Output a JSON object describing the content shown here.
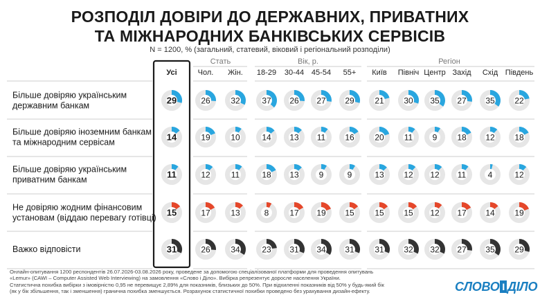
{
  "title_line1": "РОЗПОДІЛ ДОВІРИ ДО ДЕРЖАВНИХ, ПРИВАТНИХ",
  "title_line2": "ТА МІЖНАРОДНИХ БАНКІВСЬКИХ СЕРВІСІВ",
  "subtitle": "N = 1200, % (загальний, статевий, віковий і регіональний розподіли)",
  "footer": [
    "Онлайн-опитування 1200 респондентів 26.07.2026-03.08.2026 року, проведене за допомогою спеціалізованої платформи для проведення опитувань",
    "«Lemur» (CAWI – Computer Assisted Web Interviewing) на замовлення «Слово і Діло». Вибірка репрезентує доросле населення України.",
    "Статистична похибка вибірки з імовірністю 0,95 не перевищує 2,89% для показників, близьких до 50%. При відхиленні показників від 50% у будь-який бік",
    "(як у бік збільшення, так і зменшення) гранична похибка зменшується. Розрахунок статистичної похибки проведено без урахування дизайн-ефекту."
  ],
  "logo": {
    "left": "СЛОВО",
    "mid": "І",
    "right": "ДІЛО"
  },
  "colors": {
    "blue": "#29a6df",
    "red": "#e5472a",
    "dark": "#333333",
    "track": "#e6e6e6",
    "separator": "#bbbbbb",
    "highlight_border": "#1a1a1a"
  },
  "chart_data": {
    "type": "table",
    "unit": "%",
    "group_headers": [
      {
        "label": "Стать",
        "columns": [
          1,
          2
        ]
      },
      {
        "label": "Вік, р.",
        "columns": [
          3,
          4,
          5,
          6
        ]
      },
      {
        "label": "Регіон",
        "columns": [
          7,
          8,
          9,
          10,
          11,
          12
        ]
      }
    ],
    "columns": [
      "Усі",
      "Чол.",
      "Жін.",
      "18-29",
      "30-44",
      "45-54",
      "55+",
      "Київ",
      "Північ",
      "Центр",
      "Захід",
      "Схід",
      "Південь"
    ],
    "highlight_column": 0,
    "rows": [
      {
        "label_lines": [
          "Більше довіряю українським",
          "державним банкам"
        ],
        "color": "blue",
        "values": [
          29,
          26,
          32,
          37,
          26,
          27,
          29,
          21,
          30,
          35,
          27,
          35,
          22
        ]
      },
      {
        "label_lines": [
          "Більше довіряю іноземним банкам",
          "та міжнародним сервісам"
        ],
        "color": "blue",
        "values": [
          14,
          19,
          10,
          14,
          13,
          11,
          16,
          20,
          11,
          9,
          18,
          12,
          18
        ]
      },
      {
        "label_lines": [
          "Більше довіряю українським",
          "приватним банкам"
        ],
        "color": "blue",
        "values": [
          11,
          12,
          11,
          18,
          13,
          9,
          9,
          13,
          12,
          12,
          11,
          4,
          12
        ]
      },
      {
        "label_lines": [
          "Не довіряю жодним фінансовим",
          "установам (віддаю перевагу готівці)"
        ],
        "color": "red",
        "values": [
          15,
          17,
          13,
          8,
          17,
          19,
          15,
          15,
          15,
          12,
          17,
          14,
          19
        ]
      },
      {
        "label_lines": [
          "Важко відповісти"
        ],
        "color": "dark",
        "values": [
          31,
          26,
          34,
          23,
          31,
          34,
          31,
          31,
          32,
          32,
          27,
          35,
          29
        ]
      }
    ]
  }
}
